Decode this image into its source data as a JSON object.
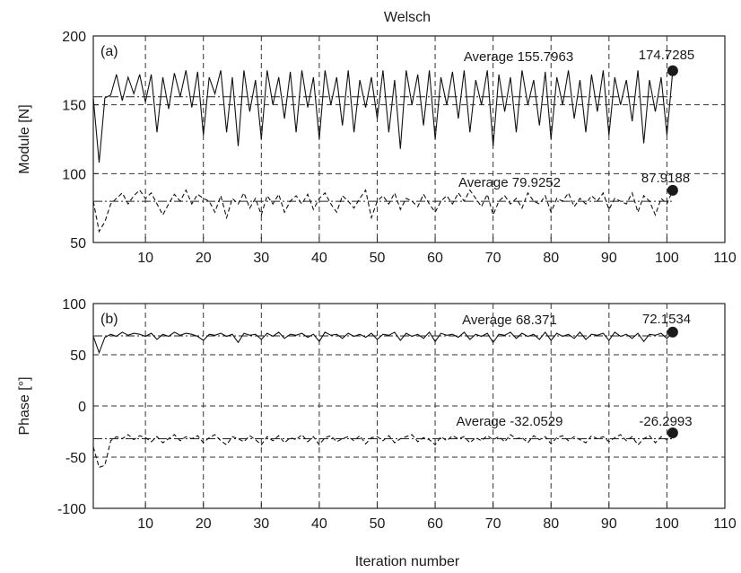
{
  "chart_data": [
    {
      "type": "line",
      "title": "Welsch",
      "panel_label": "(a)",
      "xlabel": "",
      "ylabel": "Module [N]",
      "xlim": [
        1,
        110
      ],
      "ylim": [
        50,
        200
      ],
      "x_ticks": [
        10,
        20,
        30,
        40,
        50,
        60,
        70,
        80,
        90,
        100,
        110
      ],
      "y_ticks": [
        50,
        100,
        150,
        200
      ],
      "grid": true,
      "x": [
        1,
        2,
        3,
        4,
        5,
        6,
        7,
        8,
        9,
        10,
        11,
        12,
        13,
        14,
        15,
        16,
        17,
        18,
        19,
        20,
        21,
        22,
        23,
        24,
        25,
        26,
        27,
        28,
        29,
        30,
        31,
        32,
        33,
        34,
        35,
        36,
        37,
        38,
        39,
        40,
        41,
        42,
        43,
        44,
        45,
        46,
        47,
        48,
        49,
        50,
        51,
        52,
        53,
        54,
        55,
        56,
        57,
        58,
        59,
        60,
        61,
        62,
        63,
        64,
        65,
        66,
        67,
        68,
        69,
        70,
        71,
        72,
        73,
        74,
        75,
        76,
        77,
        78,
        79,
        80,
        81,
        82,
        83,
        84,
        85,
        86,
        87,
        88,
        89,
        90,
        91,
        92,
        93,
        94,
        95,
        96,
        97,
        98,
        99,
        100,
        101
      ],
      "series": [
        {
          "style": "solid",
          "values": [
            155,
            108,
            155,
            157,
            172,
            153,
            170,
            158,
            172,
            152,
            172,
            130,
            170,
            147,
            173,
            156,
            175,
            148,
            174,
            128,
            170,
            158,
            175,
            130,
            170,
            120,
            175,
            145,
            168,
            125,
            175,
            150,
            170,
            140,
            174,
            130,
            175,
            148,
            170,
            125,
            175,
            150,
            170,
            135,
            175,
            130,
            168,
            148,
            170,
            140,
            175,
            130,
            168,
            118,
            175,
            150,
            172,
            135,
            175,
            125,
            170,
            150,
            174,
            140,
            175,
            130,
            168,
            150,
            175,
            120,
            172,
            145,
            170,
            130,
            175,
            150,
            168,
            135,
            174,
            125,
            170,
            150,
            175,
            140,
            168,
            130,
            172,
            145,
            175,
            128,
            170,
            150,
            168,
            138,
            175,
            122,
            168,
            145,
            170,
            128,
            174.7285
          ],
          "average": 155.7963
        },
        {
          "style": "dashed",
          "values": [
            80,
            58,
            65,
            78,
            82,
            86,
            78,
            84,
            88,
            82,
            86,
            78,
            70,
            78,
            85,
            80,
            88,
            78,
            85,
            82,
            80,
            72,
            84,
            68,
            82,
            78,
            86,
            75,
            82,
            70,
            84,
            78,
            85,
            72,
            80,
            84,
            78,
            85,
            74,
            82,
            86,
            78,
            72,
            84,
            80,
            75,
            82,
            88,
            68,
            80,
            84,
            78,
            86,
            74,
            82,
            80,
            76,
            85,
            78,
            72,
            80,
            84,
            78,
            86,
            80,
            88,
            82,
            76,
            85,
            70,
            80,
            84,
            78,
            82,
            75,
            86,
            80,
            78,
            84,
            72,
            82,
            80,
            86,
            76,
            82,
            78,
            84,
            80,
            86,
            74,
            82,
            80,
            78,
            86,
            72,
            84,
            80,
            70,
            82,
            78,
            87.9188
          ],
          "average": 79.9252
        }
      ],
      "annotations": [
        "Average 155.7963",
        "174.7285",
        "Average 79.9252",
        "87.9188"
      ]
    },
    {
      "type": "line",
      "panel_label": "(b)",
      "xlabel": "Iteration number",
      "ylabel": "Phase [°]",
      "xlim": [
        1,
        110
      ],
      "ylim": [
        -100,
        100
      ],
      "x_ticks": [
        10,
        20,
        30,
        40,
        50,
        60,
        70,
        80,
        90,
        100,
        110
      ],
      "y_ticks": [
        -100,
        -50,
        0,
        50,
        100
      ],
      "grid": true,
      "x": [
        1,
        2,
        3,
        4,
        5,
        6,
        7,
        8,
        9,
        10,
        11,
        12,
        13,
        14,
        15,
        16,
        17,
        18,
        19,
        20,
        21,
        22,
        23,
        24,
        25,
        26,
        27,
        28,
        29,
        30,
        31,
        32,
        33,
        34,
        35,
        36,
        37,
        38,
        39,
        40,
        41,
        42,
        43,
        44,
        45,
        46,
        47,
        48,
        49,
        50,
        51,
        52,
        53,
        54,
        55,
        56,
        57,
        58,
        59,
        60,
        61,
        62,
        63,
        64,
        65,
        66,
        67,
        68,
        69,
        70,
        71,
        72,
        73,
        74,
        75,
        76,
        77,
        78,
        79,
        80,
        81,
        82,
        83,
        84,
        85,
        86,
        87,
        88,
        89,
        90,
        91,
        92,
        93,
        94,
        95,
        96,
        97,
        98,
        99,
        100,
        101
      ],
      "series": [
        {
          "style": "solid",
          "values": [
            68,
            52,
            67,
            70,
            68,
            72,
            69,
            71,
            70,
            68,
            71,
            65,
            70,
            68,
            72,
            69,
            71,
            70,
            68,
            64,
            70,
            69,
            71,
            68,
            70,
            62,
            71,
            69,
            70,
            65,
            71,
            68,
            72,
            66,
            70,
            69,
            71,
            67,
            70,
            63,
            72,
            69,
            70,
            66,
            71,
            68,
            70,
            67,
            71,
            65,
            70,
            69,
            72,
            64,
            71,
            68,
            70,
            66,
            72,
            63,
            71,
            69,
            70,
            67,
            72,
            65,
            70,
            68,
            71,
            62,
            70,
            69,
            72,
            66,
            71,
            68,
            70,
            65,
            72,
            64,
            71,
            68,
            70,
            66,
            72,
            65,
            70,
            69,
            71,
            64,
            72,
            68,
            70,
            66,
            71,
            63,
            70,
            69,
            71,
            66,
            72.1534
          ],
          "average": 68.371
        },
        {
          "style": "dashed",
          "values": [
            -40,
            -60,
            -58,
            -34,
            -30,
            -32,
            -28,
            -33,
            -29,
            -31,
            -35,
            -30,
            -36,
            -32,
            -28,
            -34,
            -30,
            -32,
            -29,
            -36,
            -31,
            -28,
            -34,
            -38,
            -30,
            -32,
            -35,
            -29,
            -33,
            -38,
            -30,
            -34,
            -29,
            -36,
            -31,
            -33,
            -28,
            -35,
            -30,
            -38,
            -31,
            -29,
            -35,
            -32,
            -30,
            -34,
            -29,
            -37,
            -31,
            -30,
            -34,
            -29,
            -36,
            -32,
            -30,
            -28,
            -35,
            -31,
            -33,
            -38,
            -30,
            -34,
            -29,
            -32,
            -30,
            -36,
            -31,
            -34,
            -29,
            -33,
            -30,
            -35,
            -28,
            -32,
            -31,
            -36,
            -29,
            -33,
            -30,
            -37,
            -31,
            -29,
            -34,
            -30,
            -33,
            -36,
            -29,
            -32,
            -30,
            -35,
            -31,
            -28,
            -34,
            -30,
            -38,
            -32,
            -29,
            -36,
            -30,
            -33,
            -26.2993
          ],
          "average": -32.0529
        }
      ],
      "annotations": [
        "Average 68.371",
        "72.1534",
        "Average -32.0529",
        "-26.2993"
      ]
    }
  ]
}
